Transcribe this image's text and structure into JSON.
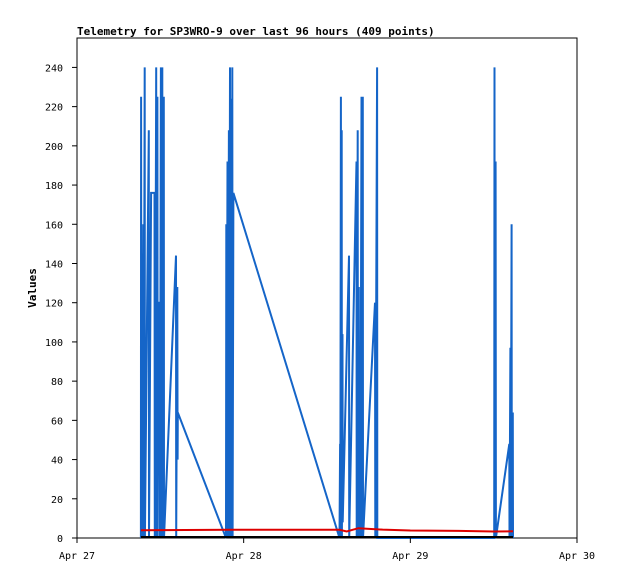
{
  "chart_data": {
    "type": "line",
    "title": "Telemetry for SP3WRO-9 over last 96 hours (409 points)",
    "xlabel": "",
    "ylabel": "Values",
    "x_ticks": [
      "Apr 27",
      "Apr 28",
      "Apr 29",
      "Apr 30"
    ],
    "y_ticks": [
      "0",
      "20",
      "40",
      "60",
      "80",
      "100",
      "120",
      "140",
      "160",
      "180",
      "200",
      "220",
      "240"
    ],
    "xlim": [
      "Apr 27 00:00",
      "Apr 30 00:00"
    ],
    "ylim": [
      0,
      255
    ],
    "grid": false,
    "legend": "none",
    "series": [
      {
        "color": "#1565c8",
        "points": [
          [
            "Apr 27 09:12",
            0
          ],
          [
            "Apr 27 09:14",
            225
          ],
          [
            "Apr 27 09:16",
            0
          ],
          [
            "Apr 27 09:24",
            145
          ],
          [
            "Apr 27 09:26",
            0
          ],
          [
            "Apr 27 09:33",
            160
          ],
          [
            "Apr 27 09:35",
            0
          ],
          [
            "Apr 27 09:45",
            240
          ],
          [
            "Apr 27 09:47",
            0
          ],
          [
            "Apr 27 10:20",
            208
          ],
          [
            "Apr 27 10:22",
            0
          ],
          [
            "Apr 27 10:40",
            176
          ],
          [
            "Apr 27 11:10",
            176
          ],
          [
            "Apr 27 11:12",
            0
          ],
          [
            "Apr 27 11:24",
            240
          ],
          [
            "Apr 27 11:26",
            0
          ],
          [
            "Apr 27 11:35",
            225
          ],
          [
            "Apr 27 11:37",
            0
          ],
          [
            "Apr 27 11:45",
            120
          ],
          [
            "Apr 27 11:55",
            120
          ],
          [
            "Apr 27 11:57",
            0
          ],
          [
            "Apr 27 12:05",
            240
          ],
          [
            "Apr 27 12:07",
            0
          ],
          [
            "Apr 27 12:17",
            240
          ],
          [
            "Apr 27 12:19",
            0
          ],
          [
            "Apr 27 12:30",
            225
          ],
          [
            "Apr 27 12:32",
            0
          ],
          [
            "Apr 27 14:15",
            144
          ],
          [
            "Apr 27 14:17",
            0
          ],
          [
            "Apr 27 14:27",
            128
          ],
          [
            "Apr 27 14:29",
            40
          ],
          [
            "Apr 27 14:31",
            64
          ],
          [
            "Apr 27 21:27",
            0
          ],
          [
            "Apr 27 21:30",
            160
          ],
          [
            "Apr 27 21:32",
            0
          ],
          [
            "Apr 27 21:40",
            192
          ],
          [
            "Apr 27 21:42",
            0
          ],
          [
            "Apr 27 21:52",
            208
          ],
          [
            "Apr 27 21:54",
            0
          ],
          [
            "Apr 27 22:02",
            240
          ],
          [
            "Apr 27 22:04",
            0
          ],
          [
            "Apr 27 22:12",
            224
          ],
          [
            "Apr 27 22:14",
            0
          ],
          [
            "Apr 27 22:22",
            240
          ],
          [
            "Apr 27 22:24",
            0
          ],
          [
            "Apr 27 22:31",
            176
          ],
          [
            "Apr 28 13:48",
            0
          ],
          [
            "Apr 28 13:53",
            48
          ],
          [
            "Apr 28 13:55",
            0
          ],
          [
            "Apr 28 14:00",
            225
          ],
          [
            "Apr 28 14:02",
            0
          ],
          [
            "Apr 28 14:07",
            208
          ],
          [
            "Apr 28 14:09",
            0
          ],
          [
            "Apr 28 14:14",
            104
          ],
          [
            "Apr 28 14:16",
            8
          ],
          [
            "Apr 28 15:10",
            144
          ],
          [
            "Apr 28 15:12",
            0
          ],
          [
            "Apr 28 16:15",
            192
          ],
          [
            "Apr 28 16:17",
            0
          ],
          [
            "Apr 28 16:25",
            208
          ],
          [
            "Apr 28 16:27",
            0
          ],
          [
            "Apr 28 16:35",
            128
          ],
          [
            "Apr 28 16:37",
            0
          ],
          [
            "Apr 28 16:47",
            64
          ],
          [
            "Apr 28 16:49",
            0
          ],
          [
            "Apr 28 16:58",
            225
          ],
          [
            "Apr 28 17:00",
            0
          ],
          [
            "Apr 28 17:09",
            225
          ],
          [
            "Apr 28 17:11",
            0
          ],
          [
            "Apr 28 18:55",
            120
          ],
          [
            "Apr 28 18:57",
            0
          ],
          [
            "Apr 28 19:13",
            240
          ],
          [
            "Apr 28 19:15",
            0
          ],
          [
            "Apr 29 12:05",
            0
          ],
          [
            "Apr 29 12:07",
            240
          ],
          [
            "Apr 29 12:09",
            0
          ],
          [
            "Apr 29 12:17",
            192
          ],
          [
            "Apr 29 12:19",
            0
          ],
          [
            "Apr 29 14:15",
            48
          ],
          [
            "Apr 29 14:17",
            0
          ],
          [
            "Apr 29 14:25",
            97
          ],
          [
            "Apr 29 14:27",
            0
          ],
          [
            "Apr 29 14:35",
            160
          ],
          [
            "Apr 29 14:37",
            0
          ],
          [
            "Apr 29 14:45",
            64
          ],
          [
            "Apr 29 14:47",
            0
          ]
        ]
      },
      {
        "color": "#dd0000",
        "points": [
          [
            "Apr 27 09:12",
            4
          ],
          [
            "Apr 27 22:00",
            4.2
          ],
          [
            "Apr 28 13:48",
            4.2
          ],
          [
            "Apr 28 14:50",
            3.3
          ],
          [
            "Apr 28 16:30",
            5
          ],
          [
            "Apr 28 20:00",
            4.3
          ],
          [
            "Apr 29 00:00",
            3.8
          ],
          [
            "Apr 29 07:00",
            3.6
          ],
          [
            "Apr 29 12:00",
            3.3
          ],
          [
            "Apr 29 14:47",
            3.4
          ]
        ]
      },
      {
        "color": "#000000",
        "points": [
          [
            "Apr 27 09:12",
            0.5
          ],
          [
            "Apr 29 14:47",
            0.5
          ]
        ]
      }
    ]
  }
}
